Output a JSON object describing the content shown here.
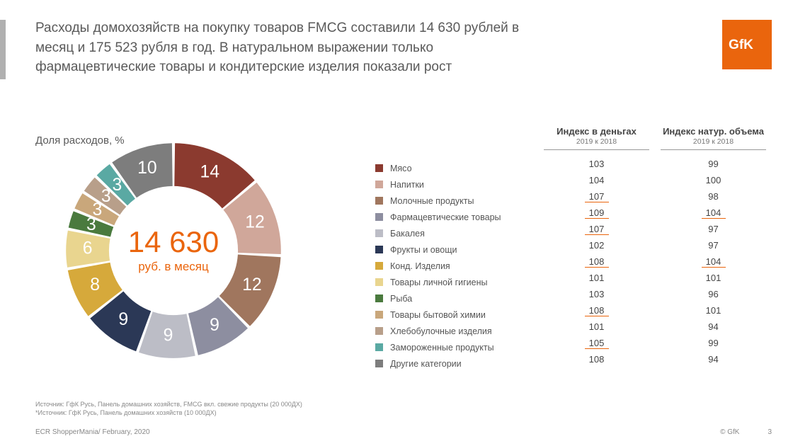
{
  "title_text": "Расходы домохозяйств на покупку товаров FMCG составили 14 630 рублей в месяц и 175 523 рубля в год. В натуральном выражении только фармацевтические товары и кондитерские изделия показали рост",
  "logo_bg": "#ea650d",
  "chart": {
    "label": "Доля расходов, %",
    "center_value": "14 630",
    "center_sub": "руб. в месяц",
    "type": "donut",
    "bg_color": "#ffffff",
    "inner_radius_ratio": 0.6,
    "label_color": "#ffffff",
    "slices": [
      {
        "label": "Мясо",
        "value": 14,
        "color": "#8b3a2f",
        "showLabel": true
      },
      {
        "label": "Напитки",
        "value": 12,
        "color": "#d0a79a",
        "showLabel": true
      },
      {
        "label": "Молочные продукты",
        "value": 12,
        "color": "#a0765e",
        "showLabel": true
      },
      {
        "label": "Фармацевтические товары",
        "value": 9,
        "color": "#8d8ea0",
        "showLabel": true
      },
      {
        "label": "Бакалея",
        "value": 9,
        "color": "#bcbdc6",
        "showLabel": true
      },
      {
        "label": "Фрукты и овощи",
        "value": 9,
        "color": "#2b3856",
        "showLabel": true
      },
      {
        "label": "Конд. Изделия",
        "value": 8,
        "color": "#d6a93b",
        "showLabel": true
      },
      {
        "label": "Товары личной гигиены",
        "value": 6,
        "color": "#e9d58f",
        "showLabel": true
      },
      {
        "label": "Рыба",
        "value": 3,
        "color": "#4a7a3e",
        "showLabel": true
      },
      {
        "label": "Товары бытовой химии",
        "value": 3,
        "color": "#c9a77b",
        "showLabel": true
      },
      {
        "label": "Хлебобулочные изделия",
        "value": 3,
        "color": "#b89f8a",
        "showLabel": true
      },
      {
        "label": "Замороженные продукты",
        "value": 3,
        "color": "#5aa9a3",
        "showLabel": true
      },
      {
        "label": "Другие категории",
        "value": 10,
        "color": "#7d7d7d",
        "showLabel": true
      }
    ]
  },
  "table": {
    "headers": [
      {
        "main": "Индекс в деньгах",
        "sub": "2019 к 2018"
      },
      {
        "main": "Индекс натур. объема",
        "sub": "2019 к 2018"
      }
    ],
    "rows": [
      {
        "money": {
          "v": "103",
          "u": false
        },
        "vol": {
          "v": "99",
          "u": false
        }
      },
      {
        "money": {
          "v": "104",
          "u": false
        },
        "vol": {
          "v": "100",
          "u": false
        }
      },
      {
        "money": {
          "v": "107",
          "u": true
        },
        "vol": {
          "v": "98",
          "u": false
        }
      },
      {
        "money": {
          "v": "109",
          "u": true
        },
        "vol": {
          "v": "104",
          "u": true
        }
      },
      {
        "money": {
          "v": "107",
          "u": true
        },
        "vol": {
          "v": "97",
          "u": false
        }
      },
      {
        "money": {
          "v": "102",
          "u": false
        },
        "vol": {
          "v": "97",
          "u": false
        }
      },
      {
        "money": {
          "v": "108",
          "u": true
        },
        "vol": {
          "v": "104",
          "u": true
        }
      },
      {
        "money": {
          "v": "101",
          "u": false
        },
        "vol": {
          "v": "101",
          "u": false
        }
      },
      {
        "money": {
          "v": "103",
          "u": false
        },
        "vol": {
          "v": "96",
          "u": false
        }
      },
      {
        "money": {
          "v": "108",
          "u": true
        },
        "vol": {
          "v": "101",
          "u": false
        }
      },
      {
        "money": {
          "v": "101",
          "u": false
        },
        "vol": {
          "v": "94",
          "u": false
        }
      },
      {
        "money": {
          "v": "105",
          "u": true
        },
        "vol": {
          "v": "99",
          "u": false
        }
      },
      {
        "money": {
          "v": "108",
          "u": false
        },
        "vol": {
          "v": "94",
          "u": false
        }
      }
    ]
  },
  "sources": {
    "line1": "Источник: ГфК Русь, Панель домашних хозяйств, FMCG вкл. свежие продукты (20 000ДХ)",
    "line2": "*Источник: ГфК Русь, Панель домашних хозяйств (10 000ДХ)"
  },
  "footer": {
    "left": "ECR ShopperMania/ February, 2020",
    "right": "© GfK",
    "page": "3"
  },
  "accent_color": "#ea650d",
  "underline_color": "#ea650d"
}
